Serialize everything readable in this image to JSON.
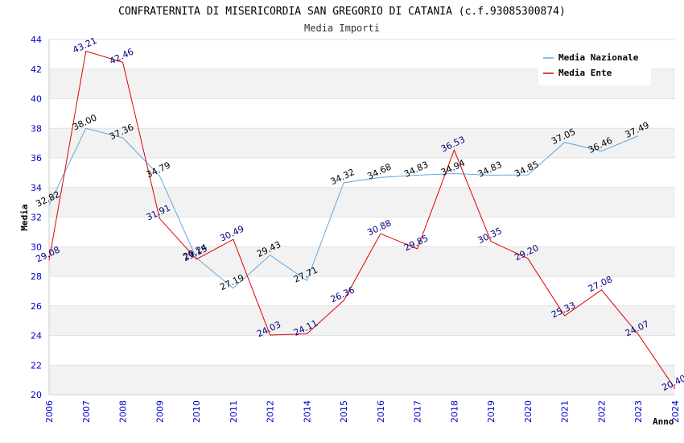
{
  "chart_data": {
    "type": "line",
    "title": "CONFRATERNITA DI MISERICORDIA SAN GREGORIO DI CATANIA (c.f.93085300874)",
    "subtitle": "Media Importi",
    "xlabel": "Anno",
    "ylabel": "Media",
    "ylim": [
      20,
      44
    ],
    "yticks": [
      20,
      22,
      24,
      26,
      28,
      30,
      32,
      34,
      36,
      38,
      40,
      42,
      44
    ],
    "x": [
      "2006",
      "2007",
      "2008",
      "2009",
      "2010",
      "2011",
      "2012",
      "2014",
      "2015",
      "2016",
      "2017",
      "2018",
      "2019",
      "2020",
      "2021",
      "2022",
      "2023",
      "2024"
    ],
    "grid": "horizontal bands",
    "legend_position": "top-right",
    "series": [
      {
        "name": "Media Nazionale",
        "color": "#5fa8e0",
        "label_color": "#000000",
        "values": [
          32.82,
          38.0,
          37.36,
          34.79,
          29.24,
          27.19,
          29.43,
          27.71,
          34.32,
          34.68,
          34.83,
          34.94,
          34.83,
          34.85,
          37.05,
          36.46,
          37.49,
          null
        ],
        "labels": [
          "32.82",
          "38.00",
          "37.36",
          "34.79",
          "29.24",
          "27.19",
          "29.43",
          "27.71",
          "34.32",
          "34.68",
          "34.83",
          "34.94",
          "34.83",
          "34.85",
          "37.05",
          "36.46",
          "37.49",
          ""
        ]
      },
      {
        "name": "Media Ente",
        "color": "#e00000",
        "label_color": "#000080",
        "values": [
          29.08,
          43.21,
          42.46,
          31.91,
          29.15,
          30.49,
          24.03,
          24.11,
          26.36,
          30.88,
          29.85,
          36.53,
          30.35,
          29.2,
          25.33,
          27.08,
          24.07,
          20.4
        ],
        "labels": [
          "29.08",
          "43.21",
          "42.46",
          "31.91",
          "29.15",
          "30.49",
          "24.03",
          "24.11",
          "26.36",
          "30.88",
          "29.85",
          "36.53",
          "30.35",
          "29.20",
          "25.33",
          "27.08",
          "24.07",
          "20.40"
        ]
      }
    ]
  }
}
